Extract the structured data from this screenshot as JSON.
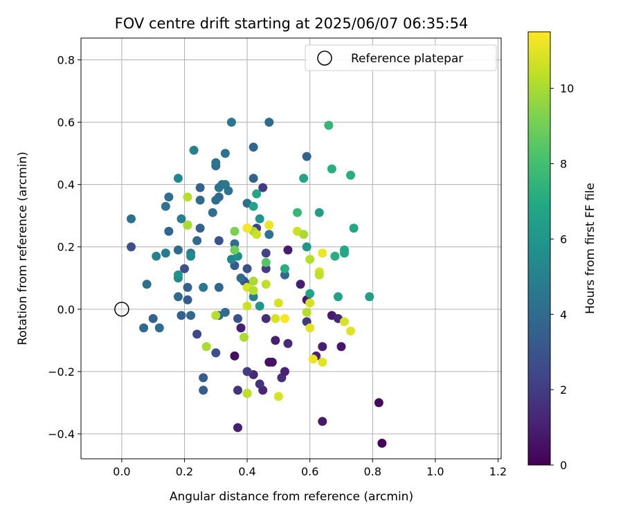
{
  "chart_data": {
    "type": "scatter",
    "title": "FOV centre drift starting at 2025/06/07 06:35:54",
    "xlabel": "Angular distance from reference (arcmin)",
    "ylabel": "Rotation from reference (arcmin)",
    "xlim": [
      -0.13,
      1.21
    ],
    "ylim": [
      -0.48,
      0.87
    ],
    "xticks": [
      0.0,
      0.2,
      0.4,
      0.6,
      0.8,
      1.0,
      1.2
    ],
    "xtick_labels": [
      "0.0",
      "0.2",
      "0.4",
      "0.6",
      "0.8",
      "1.0",
      "1.2"
    ],
    "yticks": [
      -0.4,
      -0.2,
      0.0,
      0.2,
      0.4,
      0.6,
      0.8
    ],
    "ytick_labels": [
      "−0.4",
      "−0.2",
      "0.0",
      "0.2",
      "0.4",
      "0.6",
      "0.8"
    ],
    "grid": true,
    "legend": {
      "position": "top-right",
      "entries": [
        {
          "label": "Reference platepar",
          "marker": "open-circle"
        }
      ]
    },
    "reference_point": {
      "x": 0.0,
      "y": 0.0
    },
    "colorbar": {
      "label": "Hours from first FF file",
      "colormap": "viridis",
      "range": [
        0,
        11.5
      ],
      "ticks": [
        0,
        2,
        4,
        6,
        8,
        10
      ],
      "tick_labels": [
        "0",
        "2",
        "4",
        "6",
        "8",
        "10"
      ]
    },
    "points": [
      {
        "x": 0.82,
        "y": -0.3,
        "h": 0.3
      },
      {
        "x": 0.83,
        "y": -0.43,
        "h": 0.2
      },
      {
        "x": 0.64,
        "y": -0.36,
        "h": 0.8
      },
      {
        "x": 0.7,
        "y": -0.12,
        "h": 0.7
      },
      {
        "x": 0.64,
        "y": -0.12,
        "h": 1.0
      },
      {
        "x": 0.62,
        "y": -0.15,
        "h": 1.2
      },
      {
        "x": 0.67,
        "y": -0.02,
        "h": 0.9
      },
      {
        "x": 0.69,
        "y": -0.03,
        "h": 1.3
      },
      {
        "x": 0.59,
        "y": 0.03,
        "h": 0.8
      },
      {
        "x": 0.57,
        "y": 0.08,
        "h": 1.0
      },
      {
        "x": 0.53,
        "y": 0.19,
        "h": 0.9
      },
      {
        "x": 0.53,
        "y": -0.11,
        "h": 1.4
      },
      {
        "x": 0.51,
        "y": -0.22,
        "h": 1.5
      },
      {
        "x": 0.52,
        "y": -0.2,
        "h": 1.1
      },
      {
        "x": 0.49,
        "y": -0.1,
        "h": 1.0
      },
      {
        "x": 0.48,
        "y": -0.17,
        "h": 0.6
      },
      {
        "x": 0.47,
        "y": -0.17,
        "h": 0.5
      },
      {
        "x": 0.46,
        "y": -0.03,
        "h": 1.5
      },
      {
        "x": 0.45,
        "y": -0.26,
        "h": 1.2
      },
      {
        "x": 0.44,
        "y": -0.24,
        "h": 1.6
      },
      {
        "x": 0.42,
        "y": -0.21,
        "h": 1.3
      },
      {
        "x": 0.4,
        "y": -0.2,
        "h": 2.0
      },
      {
        "x": 0.37,
        "y": -0.26,
        "h": 1.6
      },
      {
        "x": 0.37,
        "y": -0.38,
        "h": 1.0
      },
      {
        "x": 0.36,
        "y": -0.15,
        "h": 0.4
      },
      {
        "x": 0.38,
        "y": -0.06,
        "h": 1.0
      },
      {
        "x": 0.4,
        "y": -0.27,
        "h": 1.6
      },
      {
        "x": 0.59,
        "y": -0.04,
        "h": 1.8
      },
      {
        "x": 0.45,
        "y": 0.39,
        "h": 2.0
      },
      {
        "x": 0.46,
        "y": 0.18,
        "h": 2.3
      },
      {
        "x": 0.46,
        "y": 0.13,
        "h": 2.0
      },
      {
        "x": 0.43,
        "y": 0.26,
        "h": 2.2
      },
      {
        "x": 0.4,
        "y": 0.08,
        "h": 2.6
      },
      {
        "x": 0.39,
        "y": 0.09,
        "h": 3.0
      },
      {
        "x": 0.4,
        "y": 0.13,
        "h": 2.8
      },
      {
        "x": 0.37,
        "y": -0.03,
        "h": 3.0
      },
      {
        "x": 0.36,
        "y": 0.14,
        "h": 3.2
      },
      {
        "x": 0.31,
        "y": 0.22,
        "h": 3.0
      },
      {
        "x": 0.3,
        "y": -0.14,
        "h": 2.8
      },
      {
        "x": 0.24,
        "y": -0.08,
        "h": 2.5
      },
      {
        "x": 0.26,
        "y": -0.22,
        "h": 3.3
      },
      {
        "x": 0.26,
        "y": -0.26,
        "h": 3.3
      },
      {
        "x": 0.2,
        "y": 0.13,
        "h": 2.8
      },
      {
        "x": 0.03,
        "y": 0.2,
        "h": 2.8
      },
      {
        "x": 0.1,
        "y": -0.03,
        "h": 3.6
      },
      {
        "x": 0.12,
        "y": -0.06,
        "h": 4.2
      },
      {
        "x": 0.07,
        "y": -0.06,
        "h": 4.0
      },
      {
        "x": 0.08,
        "y": 0.08,
        "h": 4.2
      },
      {
        "x": 0.03,
        "y": 0.29,
        "h": 4.2
      },
      {
        "x": 0.15,
        "y": 0.25,
        "h": 3.8
      },
      {
        "x": 0.15,
        "y": 0.36,
        "h": 4.2
      },
      {
        "x": 0.14,
        "y": 0.33,
        "h": 4.4
      },
      {
        "x": 0.18,
        "y": 0.19,
        "h": 4.0
      },
      {
        "x": 0.18,
        "y": 0.04,
        "h": 4.0
      },
      {
        "x": 0.19,
        "y": -0.02,
        "h": 3.6
      },
      {
        "x": 0.21,
        "y": 0.07,
        "h": 3.6
      },
      {
        "x": 0.21,
        "y": 0.03,
        "h": 3.4
      },
      {
        "x": 0.22,
        "y": -0.02,
        "h": 3.8
      },
      {
        "x": 0.21,
        "y": 0.27,
        "h": 4.0
      },
      {
        "x": 0.24,
        "y": 0.22,
        "h": 4.0
      },
      {
        "x": 0.25,
        "y": 0.26,
        "h": 3.6
      },
      {
        "x": 0.25,
        "y": 0.35,
        "h": 4.0
      },
      {
        "x": 0.25,
        "y": 0.39,
        "h": 3.6
      },
      {
        "x": 0.26,
        "y": 0.07,
        "h": 4.6
      },
      {
        "x": 0.31,
        "y": 0.07,
        "h": 3.8
      },
      {
        "x": 0.31,
        "y": -0.02,
        "h": 4.0
      },
      {
        "x": 0.33,
        "y": -0.01,
        "h": 4.0
      },
      {
        "x": 0.29,
        "y": 0.31,
        "h": 4.2
      },
      {
        "x": 0.3,
        "y": 0.35,
        "h": 4.0
      },
      {
        "x": 0.3,
        "y": 0.46,
        "h": 4.2
      },
      {
        "x": 0.3,
        "y": 0.47,
        "h": 4.4
      },
      {
        "x": 0.31,
        "y": 0.36,
        "h": 4.0
      },
      {
        "x": 0.31,
        "y": 0.39,
        "h": 4.4
      },
      {
        "x": 0.32,
        "y": 0.4,
        "h": 4.2
      },
      {
        "x": 0.33,
        "y": 0.4,
        "h": 4.6
      },
      {
        "x": 0.33,
        "y": 0.5,
        "h": 4.4
      },
      {
        "x": 0.34,
        "y": 0.38,
        "h": 4.4
      },
      {
        "x": 0.35,
        "y": 0.6,
        "h": 4.6
      },
      {
        "x": 0.36,
        "y": 0.21,
        "h": 4.2
      },
      {
        "x": 0.38,
        "y": 0.1,
        "h": 4.0
      },
      {
        "x": 0.4,
        "y": 0.34,
        "h": 4.2
      },
      {
        "x": 0.42,
        "y": 0.52,
        "h": 3.8
      },
      {
        "x": 0.42,
        "y": 0.42,
        "h": 3.6
      },
      {
        "x": 0.47,
        "y": 0.6,
        "h": 4.0
      },
      {
        "x": 0.47,
        "y": 0.24,
        "h": 4.4
      },
      {
        "x": 0.52,
        "y": 0.11,
        "h": 4.0
      },
      {
        "x": 0.59,
        "y": 0.49,
        "h": 3.6
      },
      {
        "x": 0.11,
        "y": 0.17,
        "h": 5.0
      },
      {
        "x": 0.14,
        "y": 0.18,
        "h": 4.8
      },
      {
        "x": 0.18,
        "y": 0.1,
        "h": 5.4
      },
      {
        "x": 0.18,
        "y": 0.11,
        "h": 5.8
      },
      {
        "x": 0.19,
        "y": 0.29,
        "h": 5.0
      },
      {
        "x": 0.18,
        "y": 0.42,
        "h": 5.2
      },
      {
        "x": 0.23,
        "y": 0.51,
        "h": 5.0
      },
      {
        "x": 0.22,
        "y": 0.18,
        "h": 4.8
      },
      {
        "x": 0.22,
        "y": 0.17,
        "h": 5.4
      },
      {
        "x": 0.35,
        "y": 0.16,
        "h": 5.2
      },
      {
        "x": 0.37,
        "y": 0.17,
        "h": 5.6
      },
      {
        "x": 0.42,
        "y": 0.04,
        "h": 5.0
      },
      {
        "x": 0.42,
        "y": 0.33,
        "h": 6.6
      },
      {
        "x": 0.43,
        "y": 0.37,
        "h": 6.8
      },
      {
        "x": 0.44,
        "y": 0.29,
        "h": 5.8
      },
      {
        "x": 0.44,
        "y": 0.01,
        "h": 6.0
      },
      {
        "x": 0.4,
        "y": 0.26,
        "h": 6.4
      },
      {
        "x": 0.52,
        "y": 0.13,
        "h": 7.2
      },
      {
        "x": 0.59,
        "y": 0.2,
        "h": 6.0
      },
      {
        "x": 0.6,
        "y": 0.05,
        "h": 6.6
      },
      {
        "x": 0.63,
        "y": 0.31,
        "h": 6.4
      },
      {
        "x": 0.58,
        "y": 0.42,
        "h": 6.8
      },
      {
        "x": 0.56,
        "y": 0.31,
        "h": 7.6
      },
      {
        "x": 0.66,
        "y": 0.59,
        "h": 7.6
      },
      {
        "x": 0.67,
        "y": 0.45,
        "h": 7.2
      },
      {
        "x": 0.68,
        "y": 0.17,
        "h": 7.2
      },
      {
        "x": 0.69,
        "y": 0.04,
        "h": 6.6
      },
      {
        "x": 0.71,
        "y": 0.19,
        "h": 7.0
      },
      {
        "x": 0.71,
        "y": 0.18,
        "h": 6.8
      },
      {
        "x": 0.73,
        "y": 0.43,
        "h": 7.2
      },
      {
        "x": 0.74,
        "y": 0.26,
        "h": 6.8
      },
      {
        "x": 0.79,
        "y": 0.04,
        "h": 6.4
      },
      {
        "x": 0.46,
        "y": 0.15,
        "h": 8.4
      },
      {
        "x": 0.36,
        "y": 0.25,
        "h": 9.2
      },
      {
        "x": 0.36,
        "y": 0.19,
        "h": 9.0
      },
      {
        "x": 0.21,
        "y": 0.36,
        "h": 10.2
      },
      {
        "x": 0.21,
        "y": 0.27,
        "h": 10.0
      },
      {
        "x": 0.27,
        "y": -0.12,
        "h": 10.0
      },
      {
        "x": 0.3,
        "y": -0.02,
        "h": 10.2
      },
      {
        "x": 0.39,
        "y": -0.09,
        "h": 10.0
      },
      {
        "x": 0.4,
        "y": 0.01,
        "h": 10.6
      },
      {
        "x": 0.4,
        "y": 0.07,
        "h": 10.8
      },
      {
        "x": 0.4,
        "y": -0.27,
        "h": 10.4
      },
      {
        "x": 0.42,
        "y": 0.09,
        "h": 10.0
      },
      {
        "x": 0.42,
        "y": 0.06,
        "h": 10.2
      },
      {
        "x": 0.42,
        "y": 0.25,
        "h": 10.0
      },
      {
        "x": 0.43,
        "y": 0.24,
        "h": 10.6
      },
      {
        "x": 0.4,
        "y": 0.26,
        "h": 11.4
      },
      {
        "x": 0.47,
        "y": 0.27,
        "h": 11.2
      },
      {
        "x": 0.46,
        "y": 0.08,
        "h": 10.4
      },
      {
        "x": 0.49,
        "y": -0.03,
        "h": 10.8
      },
      {
        "x": 0.5,
        "y": 0.02,
        "h": 10.8
      },
      {
        "x": 0.5,
        "y": -0.28,
        "h": 10.8
      },
      {
        "x": 0.52,
        "y": -0.03,
        "h": 11.4
      },
      {
        "x": 0.56,
        "y": 0.25,
        "h": 10.6
      },
      {
        "x": 0.58,
        "y": 0.24,
        "h": 10.0
      },
      {
        "x": 0.6,
        "y": 0.16,
        "h": 10.2
      },
      {
        "x": 0.6,
        "y": -0.06,
        "h": 11.0
      },
      {
        "x": 0.6,
        "y": 0.02,
        "h": 10.8
      },
      {
        "x": 0.59,
        "y": -0.01,
        "h": 10.2
      },
      {
        "x": 0.61,
        "y": -0.16,
        "h": 11.2
      },
      {
        "x": 0.63,
        "y": 0.12,
        "h": 10.8
      },
      {
        "x": 0.63,
        "y": 0.11,
        "h": 10.4
      },
      {
        "x": 0.64,
        "y": 0.18,
        "h": 11.2
      },
      {
        "x": 0.64,
        "y": -0.17,
        "h": 11.0
      },
      {
        "x": 0.71,
        "y": -0.04,
        "h": 10.8
      },
      {
        "x": 0.73,
        "y": -0.07,
        "h": 11.0
      }
    ]
  }
}
